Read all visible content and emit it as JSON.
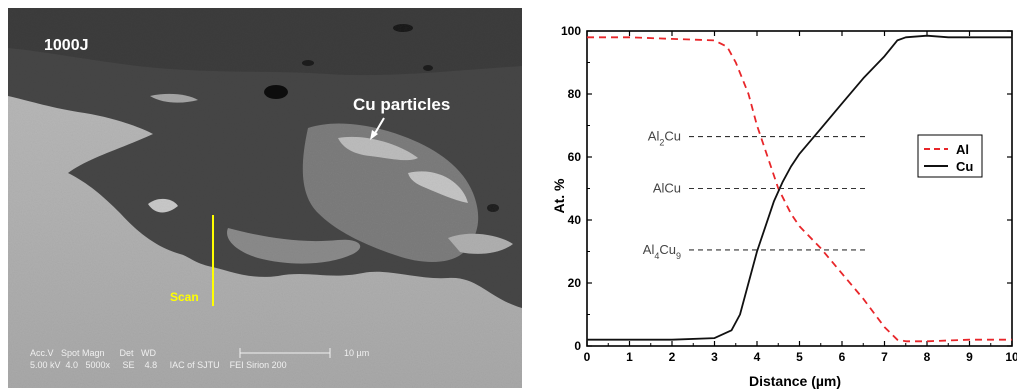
{
  "sem_image": {
    "energy_label": "1000J",
    "particle_label": "Cu particles",
    "scan_label": "Scan",
    "info_bar": {
      "row1": "Acc.V   Spot Magn      Det   WD",
      "row1b": "10 µm",
      "row2": "5.00 kV  4.0   5000x     SE    4.8     IAC of SJTU    FEI Sirion 200"
    }
  },
  "chart_data": {
    "type": "line",
    "xlabel": "Distance (µm)",
    "ylabel": "At. %",
    "xlim": [
      0,
      10
    ],
    "ylim": [
      0,
      100
    ],
    "xticks": [
      "0",
      "1",
      "2",
      "3",
      "4",
      "5",
      "6",
      "7",
      "8",
      "9",
      "10"
    ],
    "yticks": [
      "0",
      "20",
      "40",
      "60",
      "80",
      "100"
    ],
    "grid": false,
    "legend_position": "right",
    "series": [
      {
        "name": "Al",
        "color": "#e8262a",
        "style": "dashed",
        "x": [
          0,
          1,
          2,
          3,
          3.3,
          3.5,
          3.8,
          4.0,
          4.3,
          4.5,
          4.8,
          5.0,
          5.5,
          6.0,
          6.5,
          7.0,
          7.3,
          7.5,
          8,
          9,
          10
        ],
        "y": [
          98,
          98,
          97.5,
          97,
          95,
          90,
          80,
          70,
          58,
          50,
          42,
          38,
          31,
          23,
          15,
          6,
          2,
          1.5,
          1.5,
          2,
          2
        ]
      },
      {
        "name": "Cu",
        "color": "#111111",
        "style": "solid",
        "x": [
          0,
          1,
          2,
          3,
          3.4,
          3.6,
          3.8,
          4.0,
          4.2,
          4.4,
          4.6,
          4.8,
          5.0,
          5.5,
          6.0,
          6.5,
          7.0,
          7.3,
          7.5,
          8,
          8.5,
          9,
          10
        ],
        "y": [
          2,
          2,
          2,
          2.5,
          5,
          10,
          20,
          30,
          38,
          46,
          52,
          57,
          61,
          69,
          77,
          85,
          92,
          97,
          98,
          98.5,
          98,
          98,
          98
        ]
      }
    ],
    "annotations": [
      {
        "base": "Al",
        "sub": "2",
        "tail": "Cu",
        "sub2": "",
        "y": 66.5
      },
      {
        "base": "AlCu",
        "sub": "",
        "tail": "",
        "sub2": "",
        "y": 50
      },
      {
        "base": "Al",
        "sub": "4",
        "tail": "Cu",
        "sub2": "9",
        "y": 30.5
      }
    ],
    "annotation_x_range": [
      2.4,
      6.6
    ]
  }
}
